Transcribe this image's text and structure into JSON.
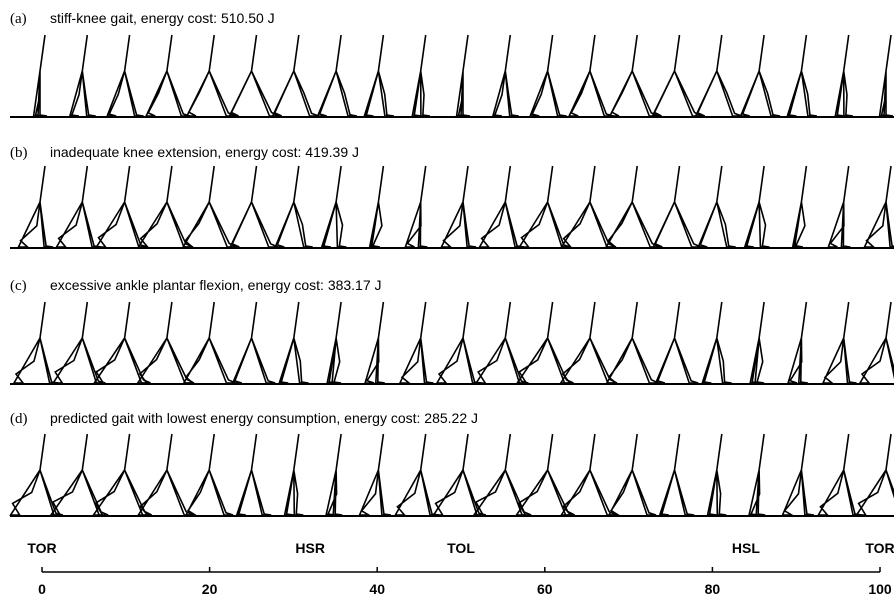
{
  "panels": [
    {
      "label": "(a)",
      "title": "stiff-knee gait, energy cost: 510.50 J"
    },
    {
      "label": "(b)",
      "title": "inadequate knee extension, energy cost: 419.39 J"
    },
    {
      "label": "(c)",
      "title": "excessive ankle plantar flexion, energy cost: 383.17 J"
    },
    {
      "label": "(d)",
      "title": "predicted gait with lowest energy consumption, energy cost: 285.22 J"
    }
  ],
  "axis": {
    "xlim": [
      0,
      100
    ],
    "xticks": [
      0,
      20,
      40,
      60,
      80,
      100
    ],
    "events": [
      {
        "label": "TOR",
        "value": 0
      },
      {
        "label": "HSR",
        "value": 32
      },
      {
        "label": "TOL",
        "value": 50
      },
      {
        "label": "HSL",
        "value": 84
      },
      {
        "label": "TOR",
        "value": 100
      }
    ]
  }
}
